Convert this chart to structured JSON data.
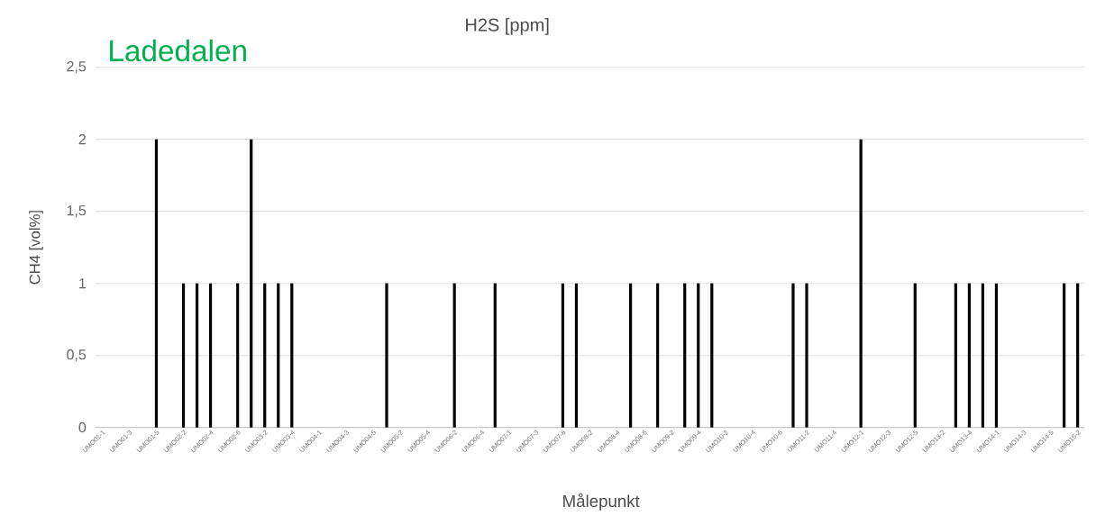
{
  "chart_data": {
    "type": "bar",
    "title": "H2S [ppm]",
    "xlabel": "Målepunkt",
    "ylabel": "CH4 [vol%]",
    "annotations": [
      "Ladedalen"
    ],
    "categories": [
      "UMO01-1",
      null,
      "UMO01-3",
      null,
      "UMO01-5",
      null,
      "UMO02-2",
      null,
      "UMO02-4",
      null,
      "UMO02-6",
      null,
      "UMO03-2",
      null,
      "UMO03-4",
      null,
      "UMO04-1",
      null,
      "UMO04-3",
      null,
      "UMO04-5",
      null,
      "UMO05-2",
      null,
      "UMO05-4",
      null,
      "UMO06-2",
      null,
      "UMO06-4",
      null,
      "UMO07-1",
      null,
      "UMO07-3",
      null,
      "UMO07-6",
      null,
      "UMO08-2",
      null,
      "UMO08-4",
      null,
      "UMO08-6",
      null,
      "UMO09-2",
      null,
      "UMO09-4",
      null,
      "UMO10-2",
      null,
      "UMO10-4",
      null,
      "UMO10-6",
      null,
      "UMO11-2",
      null,
      "UMO11-4",
      null,
      "UMO12-1",
      null,
      "UMO12-3",
      null,
      "UMO12-5",
      null,
      "UMO13-2",
      null,
      "UMO13-4",
      null,
      "UMO14-1",
      null,
      "UMO14-3",
      null,
      "UMO14-5",
      null,
      "UMO15-2"
    ],
    "values": [
      0,
      0,
      0,
      0,
      2,
      0,
      1,
      1,
      1,
      0,
      1,
      2,
      1,
      1,
      1,
      0,
      0,
      0,
      0,
      0,
      0,
      1,
      0,
      0,
      0,
      0,
      1,
      0,
      0,
      1,
      0,
      0,
      0,
      0,
      1,
      1,
      0,
      0,
      0,
      1,
      0,
      1,
      0,
      1,
      1,
      1,
      0,
      0,
      0,
      0,
      0,
      1,
      1,
      0,
      0,
      0,
      2,
      0,
      0,
      0,
      1,
      0,
      0,
      1,
      1,
      1,
      1,
      0,
      0,
      0,
      0,
      1,
      1
    ],
    "color": "#000000",
    "ylim": [
      0,
      2.5
    ],
    "yticks": [
      0,
      {
        "value": 0.5,
        "label": "0,5"
      },
      1,
      {
        "value": 1.5,
        "label": "1,5"
      },
      2,
      {
        "value": 2.5,
        "label": "2,5"
      }
    ],
    "grid": "y"
  }
}
